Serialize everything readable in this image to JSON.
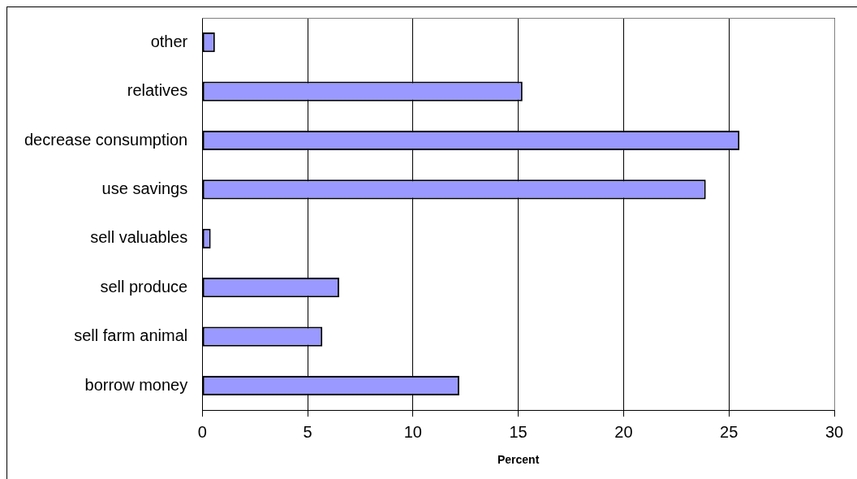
{
  "chart_data": {
    "type": "bar",
    "orientation": "horizontal",
    "xlabel": "Percent",
    "categories": [
      "other",
      "relatives",
      "decrease consumption",
      "use savings",
      "sell valuables",
      "sell produce",
      "sell farm animal",
      "borrow money"
    ],
    "values": [
      0.6,
      15.2,
      25.5,
      23.9,
      0.4,
      6.5,
      5.7,
      12.2
    ],
    "color": "#9999ff",
    "xlim": [
      0,
      30
    ],
    "xticks": [
      0,
      5,
      10,
      15,
      20,
      25,
      30
    ],
    "grid": "x",
    "legend": false
  }
}
